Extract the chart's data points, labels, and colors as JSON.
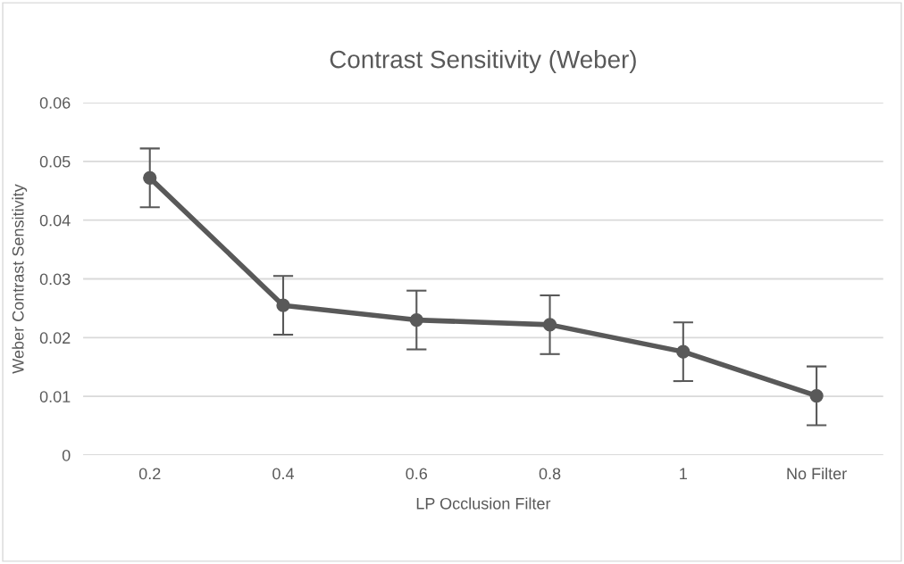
{
  "chart_data": {
    "type": "line",
    "title": "Contrast Sensitivity (Weber)",
    "xlabel": "LP Occlusion Filter",
    "ylabel": "Weber Contrast Sensitivity",
    "categories": [
      "0.2",
      "0.4",
      "0.6",
      "0.8",
      "1",
      "No Filter"
    ],
    "series": [
      {
        "color": "#595959",
        "values": [
          0.0472,
          0.0255,
          0.023,
          0.0222,
          0.0176,
          0.0101
        ],
        "errors": [
          0.005,
          0.005,
          0.005,
          0.005,
          0.005,
          0.005
        ]
      }
    ],
    "ylim": [
      0,
      0.06
    ],
    "yticks": [
      0,
      0.01,
      0.02,
      0.03,
      0.04,
      0.05,
      0.06
    ],
    "grid": "y",
    "marker": "circle",
    "line_style": "solid",
    "legend": false
  }
}
